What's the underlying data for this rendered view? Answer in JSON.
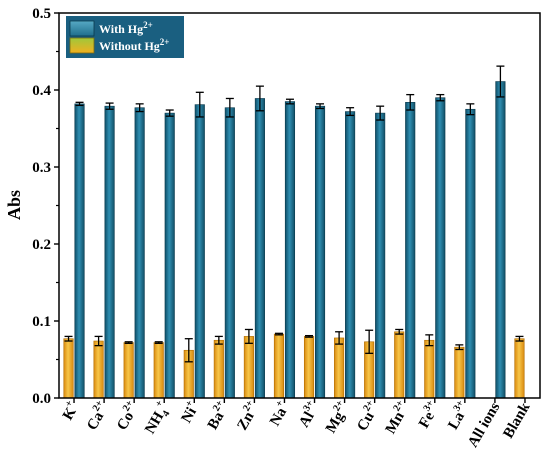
{
  "chart_data": {
    "type": "bar",
    "title": "",
    "xlabel": "",
    "ylabel": "Abs",
    "ylim": [
      0,
      0.5
    ],
    "yticks": [
      "0.0",
      "0.1",
      "0.2",
      "0.3",
      "0.4",
      "0.5"
    ],
    "grid": false,
    "legend_position": "top-left",
    "categories": [
      {
        "base": "K",
        "sup": "+"
      },
      {
        "base": "Ca",
        "sup": "2+"
      },
      {
        "base": "Co",
        "sup": "2+"
      },
      {
        "base": "NH",
        "sub": "4",
        "sup": "+"
      },
      {
        "base": "Ni",
        "sup": "+"
      },
      {
        "base": "Ba",
        "sup": "2+"
      },
      {
        "base": "Zn",
        "sup": "2+"
      },
      {
        "base": "Na",
        "sup": "+"
      },
      {
        "base": "Al",
        "sup": "3+"
      },
      {
        "base": "Mg",
        "sup": "2+"
      },
      {
        "base": "Cu",
        "sup": "2+"
      },
      {
        "base": "Mn",
        "sup": "2+"
      },
      {
        "base": "Fe",
        "sup": "3+"
      },
      {
        "base": "La",
        "sup": "3+"
      },
      {
        "base": "All ions"
      },
      {
        "base": "Blank"
      }
    ],
    "series": [
      {
        "name": "With Hg",
        "name_sup": "2+",
        "color": "#1f6e8c",
        "values": [
          0.382,
          0.379,
          0.377,
          0.37,
          0.381,
          0.377,
          0.389,
          0.385,
          0.379,
          0.372,
          0.37,
          0.384,
          0.39,
          0.375,
          0.411,
          null
        ],
        "errors": [
          0.002,
          0.004,
          0.005,
          0.004,
          0.016,
          0.012,
          0.016,
          0.003,
          0.003,
          0.005,
          0.009,
          0.01,
          0.004,
          0.007,
          0.02,
          null
        ]
      },
      {
        "name": "Without Hg",
        "name_sup": "2+",
        "color": "#f5a623",
        "values": [
          null,
          0.074,
          0.072,
          0.072,
          0.062,
          0.075,
          0.08,
          0.083,
          0.08,
          0.078,
          0.073,
          0.086,
          0.075,
          0.066,
          null,
          0.077
        ],
        "errors": [
          null,
          0.006,
          0.001,
          0.001,
          0.015,
          0.005,
          0.009,
          0.001,
          0.001,
          0.008,
          0.015,
          0.003,
          0.007,
          0.003,
          null,
          0.003
        ]
      }
    ],
    "k_lower_bar": {
      "value": 0.077,
      "error": 0.003
    }
  }
}
